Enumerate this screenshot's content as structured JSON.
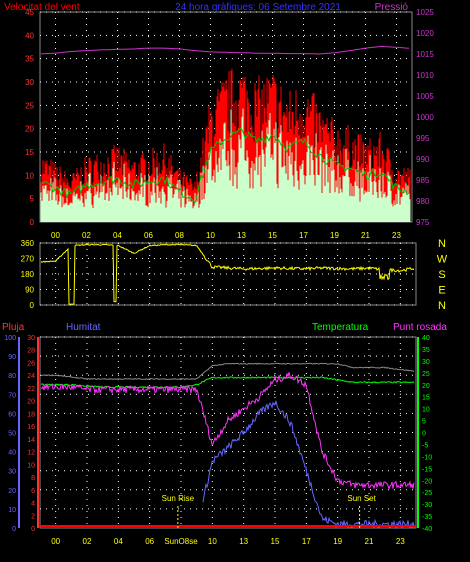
{
  "title": "24 hora gràfiques:  06 Setembre 2021",
  "colors": {
    "wind": "#ff0000",
    "gust_fill": "#ff0000",
    "avg": "#00c000",
    "speed": "#ccffcc",
    "pressure": "#cc33cc",
    "direction": "#ffff00",
    "humidity": "#6666ff",
    "temperature": "#00ff00",
    "dewpoint": "#ff33ff",
    "rain": "#ff0000",
    "axis_text": "#ffff00",
    "grid": "#ffffff"
  },
  "x_ticks": [
    "00",
    "02",
    "04",
    "06",
    "08",
    "10",
    "13",
    "15",
    "17",
    "19",
    "21",
    "23"
  ],
  "chart_data": [
    {
      "type": "line",
      "panel": "top",
      "title": "24 hora gràfiques:  06 Setembre 2021",
      "left_label": "Velocitat del vent",
      "right_label": "Pressió",
      "left_ticks": [
        0,
        5,
        10,
        15,
        20,
        25,
        30,
        35,
        40,
        45
      ],
      "right_ticks": [
        975,
        980,
        985,
        990,
        995,
        1000,
        1005,
        1010,
        1015,
        1020,
        1025
      ],
      "ylim": [
        0,
        45
      ],
      "ylim_right": [
        975,
        1025
      ],
      "x": [
        0,
        1,
        2,
        3,
        4,
        5,
        6,
        7,
        8,
        9,
        10,
        11,
        12,
        13,
        14,
        15,
        16,
        17,
        18,
        19,
        20,
        21,
        22,
        23,
        24
      ],
      "series": [
        {
          "name": "Velocitat del vent",
          "axis": "left",
          "values": [
            12,
            10,
            8,
            11,
            12,
            13,
            11,
            12,
            13,
            9,
            7,
            21,
            25,
            27,
            24,
            26,
            22,
            24,
            20,
            17,
            16,
            14,
            15,
            10,
            9
          ]
        },
        {
          "name": "Pressió",
          "axis": "right",
          "values": [
            1015,
            1015.2,
            1015.6,
            1015.8,
            1016,
            1016.1,
            1016.2,
            1016.4,
            1016.4,
            1016.2,
            1015.8,
            1015.5,
            1015.4,
            1015.3,
            1015.2,
            1015.2,
            1015.1,
            1015.1,
            1015,
            1015.3,
            1015.8,
            1016.4,
            1016.8,
            1016.6,
            1016.3
          ]
        }
      ]
    },
    {
      "type": "line",
      "panel": "direction",
      "left_ticks": [
        0,
        90,
        180,
        270,
        360
      ],
      "right_ticks": [
        "N",
        "W",
        "S",
        "E",
        "N"
      ],
      "ylim": [
        0,
        360
      ],
      "x": [
        0,
        1,
        2,
        3,
        4,
        5,
        6,
        7,
        8,
        9,
        10,
        11,
        12,
        13,
        14,
        15,
        16,
        17,
        18,
        19,
        20,
        21,
        22,
        23,
        24
      ],
      "values": [
        250,
        255,
        345,
        350,
        350,
        345,
        300,
        345,
        350,
        350,
        345,
        220,
        215,
        210,
        212,
        215,
        212,
        210,
        215,
        212,
        210,
        214,
        205,
        200,
        215
      ]
    },
    {
      "type": "line",
      "panel": "bottom",
      "labels": [
        "Pluja",
        "Humitat",
        "Temperatura",
        "Punt rosada"
      ],
      "left_ticks_rain": [
        0,
        2,
        4,
        6,
        8,
        10,
        12,
        14,
        16,
        18,
        20,
        22,
        24,
        26,
        28,
        30
      ],
      "left_ticks_humidity": [
        0,
        10,
        20,
        30,
        40,
        50,
        60,
        70,
        80,
        90,
        100
      ],
      "right_ticks": [
        -40,
        -35,
        -30,
        -25,
        -20,
        -15,
        -10,
        -5,
        0,
        5,
        10,
        15,
        20,
        25,
        30,
        35,
        40
      ],
      "annotations": [
        "Sun Rise",
        "Sun Set"
      ],
      "x_ticks_bottom": [
        "00",
        "02",
        "04",
        "06",
        "SunO8se",
        "10",
        "13",
        "15",
        "17",
        "19",
        "21",
        "23"
      ],
      "x": [
        0,
        1,
        2,
        3,
        4,
        5,
        6,
        7,
        8,
        9,
        10,
        11,
        12,
        13,
        14,
        15,
        16,
        17,
        18,
        19,
        20,
        21,
        22,
        23,
        24
      ],
      "series": [
        {
          "name": "Temperatura",
          "axis": "right",
          "values": [
            20,
            20,
            20,
            19.5,
            19,
            19,
            19,
            19,
            19,
            19,
            20,
            23,
            23,
            23,
            23,
            23,
            23,
            23,
            23,
            22,
            21,
            21,
            21,
            21,
            21
          ]
        },
        {
          "name": "Humitat",
          "axis": "humidity",
          "values": [
            80,
            80,
            79,
            78,
            78,
            78,
            78,
            78,
            78,
            78,
            78,
            85,
            86,
            86,
            86,
            86,
            86,
            86,
            86,
            86,
            84,
            84,
            84,
            83,
            82
          ]
        },
        {
          "name": "Punt rosada",
          "axis": "right",
          "values": [
            19,
            19,
            19,
            18,
            18,
            18,
            18,
            18,
            18,
            18,
            18,
            -5,
            5,
            10,
            15,
            22,
            24,
            20,
            -8,
            -20,
            -22,
            -22,
            -22,
            -22,
            -22
          ]
        },
        {
          "name": "Pluja",
          "axis": "rain",
          "values": [
            0,
            0,
            0,
            0,
            0,
            0,
            0,
            0,
            0,
            0,
            0,
            0,
            0,
            0,
            0,
            0,
            0,
            0,
            0,
            0,
            0,
            0,
            0,
            0,
            0
          ]
        }
      ]
    }
  ]
}
